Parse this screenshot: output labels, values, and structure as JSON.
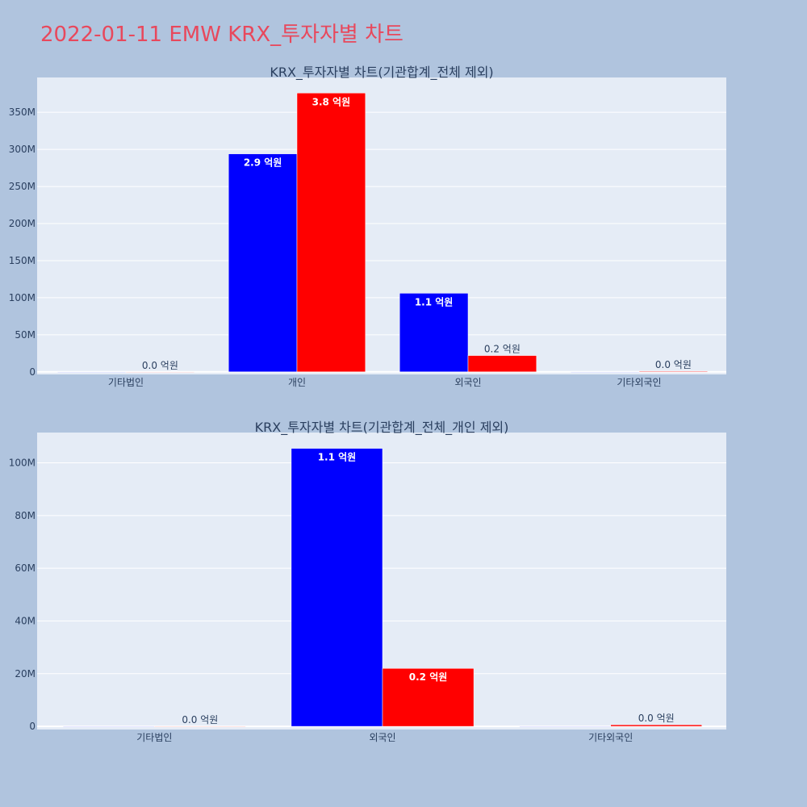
{
  "page": {
    "title": "2022-01-11 EMW KRX_투자자별 차트"
  },
  "colors": {
    "background": "#b0c4de",
    "plot_bg": "#e5ecf6",
    "title": "#e8485c",
    "series_1": "#0000ff",
    "series_2": "#ff0000",
    "text": "#2a3f5f"
  },
  "chart_data": [
    {
      "type": "bar",
      "title": "KRX_투자자별 차트(기관합계_전체 제외)",
      "categories": [
        "기타법인",
        "개인",
        "외국인",
        "기타외국인"
      ],
      "series": [
        {
          "color": "#0000ff",
          "values": [
            0,
            294000000,
            106000000,
            0
          ],
          "labels": [
            "",
            "2.9 억원",
            "1.1 억원",
            ""
          ]
        },
        {
          "color": "#ff0000",
          "values": [
            0,
            376000000,
            22000000,
            900000
          ],
          "labels": [
            "0.0 억원",
            "3.8 억원",
            "0.2 억원",
            "0.0 억원"
          ]
        }
      ],
      "ylim": [
        -3500000,
        397000000
      ],
      "yticks": [
        0,
        50000000,
        100000000,
        150000000,
        200000000,
        250000000,
        300000000,
        350000000
      ],
      "ytick_labels": [
        "0",
        "50M",
        "100M",
        "150M",
        "200M",
        "250M",
        "300M",
        "350M"
      ]
    },
    {
      "type": "bar",
      "title": "KRX_투자자별 차트(기관합계_전체_개인 제외)",
      "categories": [
        "기타법인",
        "외국인",
        "기타외국인"
      ],
      "series": [
        {
          "color": "#0000ff",
          "values": [
            0,
            105500000,
            0
          ],
          "labels": [
            "",
            "1.1 억원",
            ""
          ]
        },
        {
          "color": "#ff0000",
          "values": [
            0,
            22000000,
            600000
          ],
          "labels": [
            "0.0 억원",
            "0.2 억원",
            "0.0 억원"
          ]
        }
      ],
      "ylim": [
        -1200000,
        111500000
      ],
      "yticks": [
        0,
        20000000,
        40000000,
        60000000,
        80000000,
        100000000
      ],
      "ytick_labels": [
        "0",
        "20M",
        "40M",
        "60M",
        "80M",
        "100M"
      ]
    }
  ]
}
